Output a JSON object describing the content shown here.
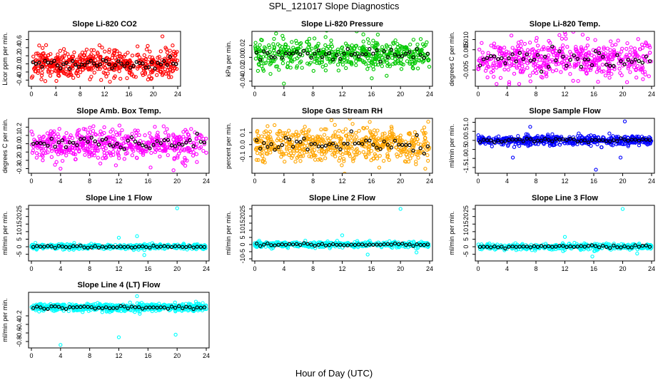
{
  "page": {
    "title": "SPL_121017  Slope Diagnostics",
    "xlabel": "Hour of Day (UTC)"
  },
  "chart_data": [
    {
      "type": "scatter",
      "title": "Slope Li-820 CO2",
      "ylabel": "Licor ppm per min.",
      "xlim": [
        0,
        24
      ],
      "ylim": [
        -0.5,
        0.75
      ],
      "xticks": [
        0,
        4,
        8,
        12,
        16,
        20,
        24
      ],
      "yticks": [
        -0.4,
        -0.2,
        0.0,
        0.2,
        0.4,
        0.6
      ],
      "ytick_labels": [
        "-0.4",
        "-0.2",
        "0.0",
        "0.2",
        "0.4",
        "0.6"
      ],
      "color": "#ff0000",
      "center": 0.0,
      "spread": 0.17,
      "n": 520,
      "outliers": [
        {
          "x": 21.5,
          "y": 0.68
        },
        {
          "x": 4.1,
          "y": -0.42
        },
        {
          "x": 9.6,
          "y": -0.38
        }
      ]
    },
    {
      "type": "scatter",
      "title": "Slope Li-820 Pressure",
      "ylabel": "kPa per min.",
      "xlim": [
        0,
        24
      ],
      "ylim": [
        -0.045,
        0.04
      ],
      "xticks": [
        0,
        4,
        8,
        12,
        16,
        20,
        24
      ],
      "yticks": [
        -0.04,
        -0.02,
        0.0,
        0.02
      ],
      "ytick_labels": [
        "-0.04",
        "-0.02",
        "0.00",
        "0.02"
      ],
      "color": "#00c800",
      "center": 0.005,
      "spread": 0.012,
      "n": 520,
      "outliers": [
        {
          "x": 4.0,
          "y": -0.044
        },
        {
          "x": 3.8,
          "y": 0.036
        },
        {
          "x": 18.1,
          "y": -0.031
        }
      ]
    },
    {
      "type": "scatter",
      "title": "Slope Li-820 Temp.",
      "ylabel": "degrees C per min.",
      "xlim": [
        0,
        24
      ],
      "ylim": [
        -0.012,
        0.013
      ],
      "xticks": [
        0,
        4,
        8,
        12,
        16,
        20,
        24
      ],
      "yticks": [
        -0.005,
        0.005,
        0.01
      ],
      "ytick_labels": [
        "-0.005",
        "0.005",
        "0.010"
      ],
      "color": "#ff00ff",
      "center": 0.0,
      "spread": 0.0048,
      "n": 520,
      "outliers": [
        {
          "x": 4.6,
          "y": 0.012
        },
        {
          "x": 4.3,
          "y": -0.011
        },
        {
          "x": 20.6,
          "y": -0.011
        }
      ]
    },
    {
      "type": "scatter",
      "title": "Slope Amb. Box Temp.",
      "ylabel": "degrees C per min.",
      "xlim": [
        0,
        24
      ],
      "ylim": [
        -0.33,
        0.28
      ],
      "xticks": [
        0,
        4,
        8,
        12,
        16,
        20,
        24
      ],
      "yticks": [
        -0.3,
        -0.2,
        -0.1,
        0.0,
        0.1,
        0.2
      ],
      "ytick_labels": [
        "-0.3",
        "-0.2",
        "-0.1",
        "0.0",
        "0.1",
        "0.2"
      ],
      "color": "#ff00ff",
      "center": 0.0,
      "spread": 0.09,
      "n": 520,
      "outliers": [
        {
          "x": 4.0,
          "y": -0.3
        },
        {
          "x": 19.5,
          "y": -0.32
        },
        {
          "x": 11.6,
          "y": -0.26
        }
      ]
    },
    {
      "type": "scatter",
      "title": "Slope Gas Stream RH",
      "ylabel": "percent per min.",
      "xlim": [
        0,
        24
      ],
      "ylim": [
        -0.22,
        0.2
      ],
      "xticks": [
        0,
        4,
        8,
        12,
        16,
        20,
        24
      ],
      "yticks": [
        -0.1,
        0.0,
        0.1
      ],
      "ytick_labels": [
        "-0.1",
        "0.0",
        "0.1"
      ],
      "color": "#ffa500",
      "center": 0.0,
      "spread": 0.075,
      "n": 560,
      "outliers": [
        {
          "x": 23.8,
          "y": 0.19
        },
        {
          "x": 23.4,
          "y": -0.2
        }
      ]
    },
    {
      "type": "scatter",
      "title": "Slope Sample Flow",
      "ylabel": "ml/min per min.",
      "xlim": [
        0,
        24
      ],
      "ylim": [
        -1.7,
        1.1
      ],
      "xticks": [
        0,
        4,
        8,
        12,
        16,
        20,
        24
      ],
      "yticks": [
        -1.5,
        -1.0,
        -0.5,
        0.0,
        0.5,
        1.0
      ],
      "ytick_labels": [
        "-1.5",
        "-1.0",
        "-0.5",
        "0.0",
        "0.5",
        "1.0"
      ],
      "color": "#0000ff",
      "center": 0.0,
      "spread": 0.13,
      "n": 520,
      "outliers": [
        {
          "x": 16.3,
          "y": -1.62
        },
        {
          "x": 20.3,
          "y": 1.05
        },
        {
          "x": 7.2,
          "y": 0.75
        },
        {
          "x": 4.8,
          "y": -0.95
        },
        {
          "x": 19.7,
          "y": -0.95
        }
      ]
    },
    {
      "type": "scatter",
      "title": "Slope Line 1 Flow",
      "ylabel": "ml/min per min.",
      "xlim": [
        0,
        24
      ],
      "ylim": [
        -8,
        26
      ],
      "xticks": [
        0,
        4,
        8,
        12,
        16,
        20,
        24
      ],
      "yticks": [
        -5,
        0,
        5,
        10,
        15,
        20,
        25
      ],
      "ytick_labels": [
        "-5",
        "0",
        "5",
        "10",
        "15",
        "20",
        "25"
      ],
      "color": "#00ffff",
      "center": 0.0,
      "spread": 0.9,
      "n": 420,
      "outliers": [
        {
          "x": 20.0,
          "y": 25.5
        },
        {
          "x": 12.0,
          "y": 6.0
        },
        {
          "x": 14.5,
          "y": 7.0
        },
        {
          "x": 15.5,
          "y": -5.5
        }
      ]
    },
    {
      "type": "scatter",
      "title": "Slope Line 2 Flow",
      "ylabel": "ml/min per min.",
      "xlim": [
        0,
        24
      ],
      "ylim": [
        -10,
        26
      ],
      "xticks": [
        0,
        4,
        8,
        12,
        16,
        20,
        24
      ],
      "yticks": [
        -10,
        -5,
        0,
        5,
        10,
        15,
        20,
        25
      ],
      "ytick_labels": [
        "-10",
        "-5",
        "0",
        "5",
        "10",
        "15",
        "20",
        "25"
      ],
      "color": "#00ffff",
      "center": 0.0,
      "spread": 1.0,
      "n": 420,
      "outliers": [
        {
          "x": 20.0,
          "y": 25.0
        },
        {
          "x": 12.0,
          "y": 6.5
        },
        {
          "x": 22.2,
          "y": -5.5
        },
        {
          "x": 15.5,
          "y": -7.0
        }
      ]
    },
    {
      "type": "scatter",
      "title": "Slope Line 3 Flow",
      "ylabel": "ml/min per min.",
      "xlim": [
        0,
        24
      ],
      "ylim": [
        -8,
        26
      ],
      "xticks": [
        0,
        4,
        8,
        12,
        16,
        20,
        24
      ],
      "yticks": [
        -5,
        0,
        5,
        10,
        15,
        20,
        25
      ],
      "ytick_labels": [
        "-5",
        "0",
        "5",
        "10",
        "15",
        "20",
        "25"
      ],
      "color": "#00ffff",
      "center": 0.0,
      "spread": 1.0,
      "n": 420,
      "outliers": [
        {
          "x": 20.0,
          "y": 25.0
        },
        {
          "x": 12.0,
          "y": 6.5
        },
        {
          "x": 15.8,
          "y": -6.5
        },
        {
          "x": 22.0,
          "y": -4.5
        }
      ]
    },
    {
      "type": "scatter",
      "title": "Slope Line 4 (LT) Flow",
      "ylabel": "ml/min per min.",
      "xlim": [
        0,
        24
      ],
      "ylim": [
        -0.9,
        0.3
      ],
      "xticks": [
        0,
        4,
        8,
        12,
        16,
        20,
        24
      ],
      "yticks": [
        -0.8,
        -0.6,
        -0.4,
        -0.2
      ],
      "ytick_labels": [
        "-0.8",
        "-0.6",
        "-0.4",
        "-0.2"
      ],
      "color": "#00ffff",
      "center": 0.0,
      "spread": 0.045,
      "n": 600,
      "outliers": [
        {
          "x": 4.0,
          "y": -0.88
        },
        {
          "x": 12.0,
          "y": -0.7
        },
        {
          "x": 19.8,
          "y": -0.64
        },
        {
          "x": 14.5,
          "y": 0.26
        }
      ]
    }
  ]
}
